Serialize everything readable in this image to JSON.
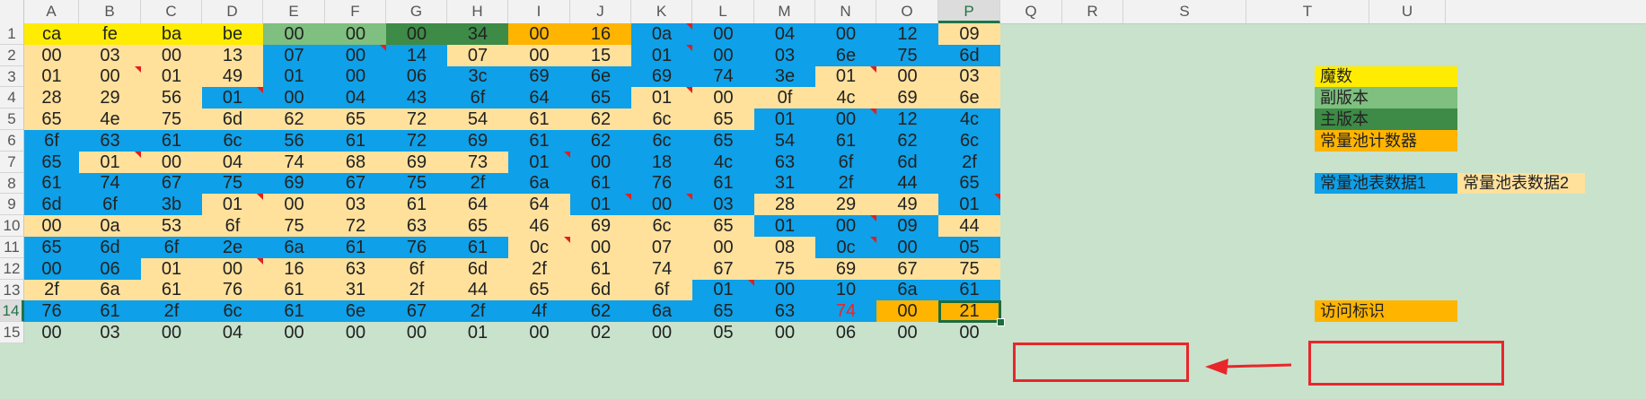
{
  "columns": [
    "A",
    "B",
    "C",
    "D",
    "E",
    "F",
    "G",
    "H",
    "I",
    "J",
    "K",
    "L",
    "M",
    "N",
    "O",
    "P",
    "Q",
    "R",
    "S",
    "T",
    "U"
  ],
  "selected_column": "P",
  "rows": [
    "1",
    "2",
    "3",
    "4",
    "5",
    "6",
    "7",
    "8",
    "9",
    "10",
    "11",
    "12",
    "13",
    "14",
    "15"
  ],
  "selected_row": "14",
  "colors": {
    "yellow": "#ffec00",
    "light_green": "#7fbf7f",
    "dark_green": "#3d8b46",
    "orange": "#ffb400",
    "blue": "#0ea0e8",
    "cream": "#ffe19c",
    "sheet_bg": "#c8e2cc",
    "red": "#e8262b"
  },
  "grid": [
    [
      "ca",
      "fe",
      "ba",
      "be",
      "00",
      "00",
      "00",
      "34",
      "00",
      "16",
      "0a",
      "00",
      "04",
      "00",
      "12",
      "09"
    ],
    [
      "00",
      "03",
      "00",
      "13",
      "07",
      "00",
      "14",
      "07",
      "00",
      "15",
      "01",
      "00",
      "03",
      "6e",
      "75",
      "6d"
    ],
    [
      "01",
      "00",
      "01",
      "49",
      "01",
      "00",
      "06",
      "3c",
      "69",
      "6e",
      "69",
      "74",
      "3e",
      "01",
      "00",
      "03"
    ],
    [
      "28",
      "29",
      "56",
      "01",
      "00",
      "04",
      "43",
      "6f",
      "64",
      "65",
      "01",
      "00",
      "0f",
      "4c",
      "69",
      "6e"
    ],
    [
      "65",
      "4e",
      "75",
      "6d",
      "62",
      "65",
      "72",
      "54",
      "61",
      "62",
      "6c",
      "65",
      "01",
      "00",
      "12",
      "4c"
    ],
    [
      "6f",
      "63",
      "61",
      "6c",
      "56",
      "61",
      "72",
      "69",
      "61",
      "62",
      "6c",
      "65",
      "54",
      "61",
      "62",
      "6c"
    ],
    [
      "65",
      "01",
      "00",
      "04",
      "74",
      "68",
      "69",
      "73",
      "01",
      "00",
      "18",
      "4c",
      "63",
      "6f",
      "6d",
      "2f"
    ],
    [
      "61",
      "74",
      "67",
      "75",
      "69",
      "67",
      "75",
      "2f",
      "6a",
      "61",
      "76",
      "61",
      "31",
      "2f",
      "44",
      "65"
    ],
    [
      "6d",
      "6f",
      "3b",
      "01",
      "00",
      "03",
      "61",
      "64",
      "64",
      "01",
      "00",
      "03",
      "28",
      "29",
      "49",
      "01"
    ],
    [
      "00",
      "0a",
      "53",
      "6f",
      "75",
      "72",
      "63",
      "65",
      "46",
      "69",
      "6c",
      "65",
      "01",
      "00",
      "09",
      "44"
    ],
    [
      "65",
      "6d",
      "6f",
      "2e",
      "6a",
      "61",
      "76",
      "61",
      "0c",
      "00",
      "07",
      "00",
      "08",
      "0c",
      "00",
      "05"
    ],
    [
      "00",
      "06",
      "01",
      "00",
      "16",
      "63",
      "6f",
      "6d",
      "2f",
      "61",
      "74",
      "67",
      "75",
      "69",
      "67",
      "75"
    ],
    [
      "2f",
      "6a",
      "61",
      "76",
      "61",
      "31",
      "2f",
      "44",
      "65",
      "6d",
      "6f",
      "01",
      "00",
      "10",
      "6a",
      "61"
    ],
    [
      "76",
      "61",
      "2f",
      "6c",
      "61",
      "6e",
      "67",
      "2f",
      "4f",
      "62",
      "6a",
      "65",
      "63",
      "74",
      "00",
      "21"
    ],
    [
      "00",
      "03",
      "00",
      "04",
      "00",
      "00",
      "00",
      "01",
      "00",
      "02",
      "00",
      "05",
      "00",
      "06",
      "00",
      "00"
    ]
  ],
  "legend": {
    "magic": "魔数",
    "minor_version": "副版本",
    "major_version": "主版本",
    "constant_pool_count": "常量池计数器",
    "constant_pool_data1": "常量池表数据1",
    "constant_pool_data2": "常量池表数据2",
    "access_flags": "访问标识"
  }
}
